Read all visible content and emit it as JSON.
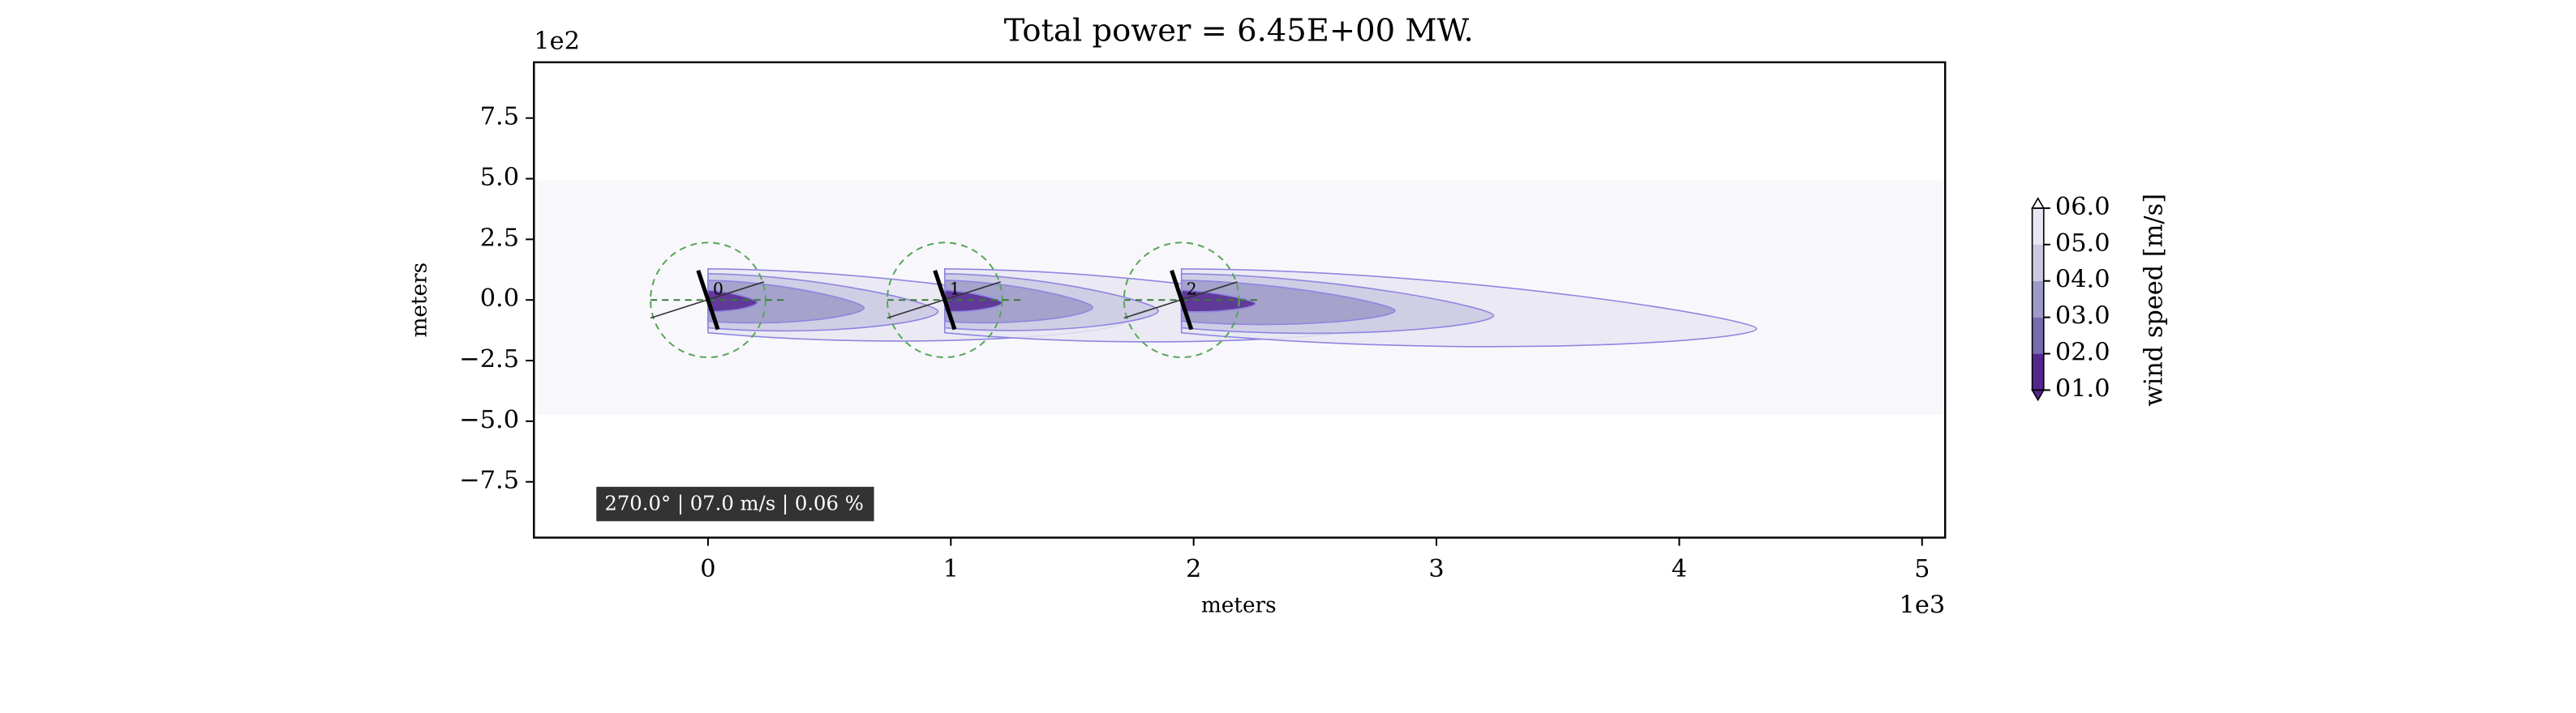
{
  "chart_data": {
    "type": "wake",
    "title": "Total power = 6.45E+00 MW.",
    "xlabel": "meters",
    "ylabel": "meters",
    "x_offset_label": "1e3",
    "y_offset_label": "1e2",
    "xlim": [
      -0.717,
      5.095
    ],
    "ylim": [
      -9.8,
      9.8
    ],
    "xticks": [
      0,
      1,
      2,
      3,
      4,
      5
    ],
    "yticks": [
      {
        "value": -7.5,
        "label": "−7.5"
      },
      {
        "value": -5,
        "label": "−5.0"
      },
      {
        "value": -2.5,
        "label": "−2.5"
      },
      {
        "value": 0,
        "label": "0.0"
      },
      2.5,
      {
        "value": 5,
        "label": "5.0"
      },
      7.5
    ],
    "turbines": [
      {
        "label": "0",
        "x": 0,
        "y": 0
      },
      {
        "label": "1",
        "x": 0.975,
        "y": 0
      },
      {
        "label": "2",
        "x": 1.95,
        "y": 0
      }
    ],
    "annotation": "270.0° | 07.0 m/s | 0.06 %",
    "colorbar": {
      "label": "wind speed [m/s]",
      "ticks": [
        {
          "value": 1,
          "label": "01.0"
        },
        {
          "value": 2,
          "label": "02.0"
        },
        {
          "value": 3,
          "label": "03.0"
        },
        {
          "value": 4,
          "label": "04.0"
        },
        {
          "value": 5,
          "label": "05.0"
        },
        {
          "value": 6,
          "label": "06.0"
        }
      ],
      "colors": [
        "#54278f",
        "#756bb1",
        "#9e9ac8",
        "#cbc9e2",
        "#e9e7f2"
      ]
    }
  }
}
